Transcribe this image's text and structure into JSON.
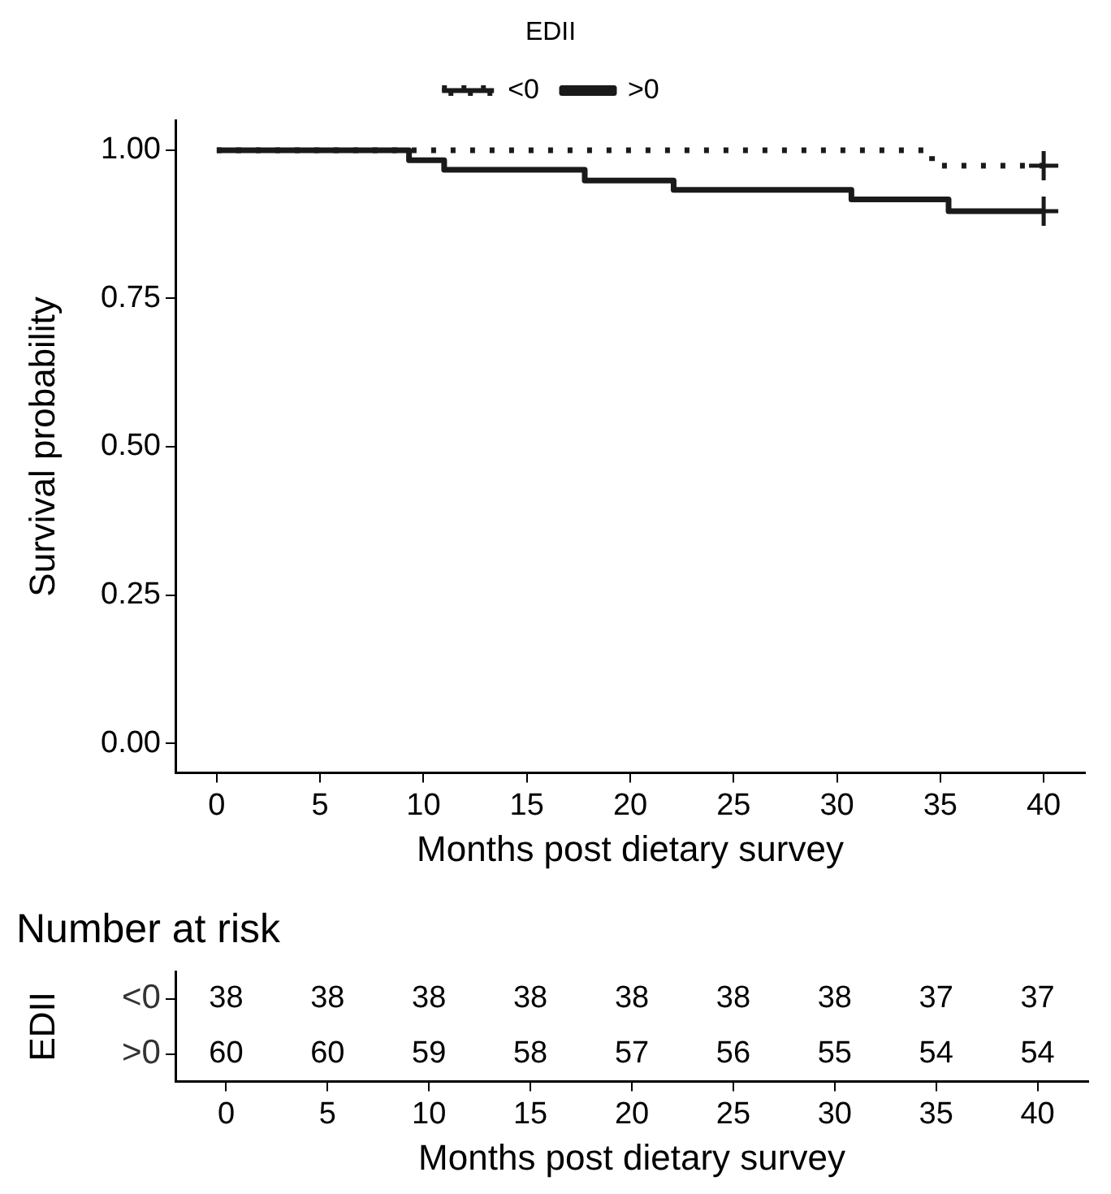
{
  "chart_data": [
    {
      "type": "step",
      "xlabel": "Months post dietary survey",
      "ylabel": "Survival probability",
      "legend_title": "EDII",
      "legend": "top",
      "grid": false,
      "xlim": [
        -2,
        42
      ],
      "xticks": [
        0,
        5,
        10,
        15,
        20,
        25,
        30,
        35,
        40
      ],
      "ylim": [
        -0.05,
        1.05
      ],
      "yticks": [
        {
          "value": 0,
          "label": "0.00"
        },
        {
          "value": 0.25,
          "label": "0.25"
        },
        {
          "value": 0.5,
          "label": "0.50"
        },
        {
          "value": 0.75,
          "label": "0.75"
        },
        {
          "value": 1,
          "label": "1.00"
        }
      ],
      "series": [
        {
          "name": "<0",
          "color": "#1a1a1a",
          "line_style": "dotted",
          "x": [
            0,
            34.6,
            40
          ],
          "values": [
            1,
            0.974,
            0.974
          ]
        },
        {
          "name": ">0",
          "color": "#1a1a1a",
          "line_style": "solid",
          "x": [
            0,
            9.3,
            11,
            17.8,
            22.1,
            30.7,
            35.4,
            40
          ],
          "values": [
            1,
            0.983,
            0.967,
            0.949,
            0.933,
            0.917,
            0.897,
            0.897
          ]
        },
        {
          "type": "scatter",
          "color": "#1a1a1a",
          "marker": "cross",
          "x": [
            40,
            40
          ],
          "values": [
            0.974,
            0.897
          ]
        }
      ]
    },
    {
      "type": "heatmap",
      "title": "Number at risk",
      "xlabel": "Months post dietary survey",
      "ylabel": "EDII",
      "categories": [
        "0",
        "5",
        "10",
        "15",
        "20",
        "25",
        "30",
        "35",
        "40"
      ],
      "y_categories": [
        "<0",
        ">0"
      ],
      "data_labels": true,
      "cells": [
        [
          38,
          38,
          38,
          38,
          38,
          38,
          38,
          37,
          37
        ],
        [
          60,
          60,
          59,
          58,
          57,
          56,
          55,
          54,
          54
        ]
      ]
    }
  ]
}
